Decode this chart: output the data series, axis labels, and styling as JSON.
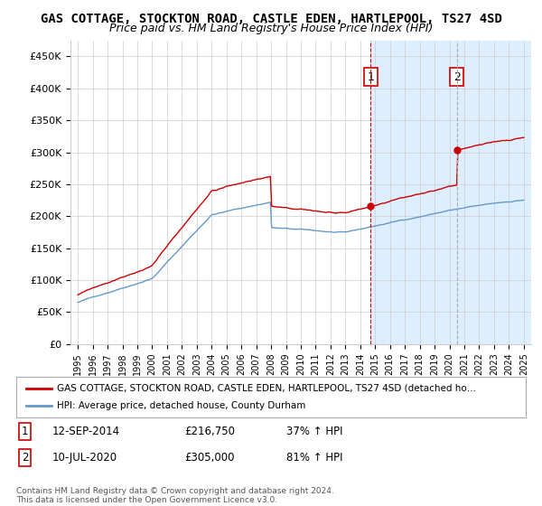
{
  "title": "GAS COTTAGE, STOCKTON ROAD, CASTLE EDEN, HARTLEPOOL, TS27 4SD",
  "subtitle": "Price paid vs. HM Land Registry's House Price Index (HPI)",
  "ylim": [
    0,
    475000
  ],
  "yticks": [
    0,
    50000,
    100000,
    150000,
    200000,
    250000,
    300000,
    350000,
    400000,
    450000
  ],
  "ytick_labels": [
    "£0",
    "£50K",
    "£100K",
    "£150K",
    "£200K",
    "£250K",
    "£300K",
    "£350K",
    "£400K",
    "£450K"
  ],
  "hpi_color": "#6699cc",
  "price_color": "#cc0000",
  "annotation1_date": "12-SEP-2014",
  "annotation1_price": "£216,750",
  "annotation1_pct": "37% ↑ HPI",
  "annotation1_year": 2014.7,
  "annotation1_value": 216750,
  "annotation2_date": "10-JUL-2020",
  "annotation2_price": "£305,000",
  "annotation2_pct": "81% ↑ HPI",
  "annotation2_year": 2020.5,
  "annotation2_value": 305000,
  "legend_label1": "GAS COTTAGE, STOCKTON ROAD, CASTLE EDEN, HARTLEPOOL, TS27 4SD (detached ho…",
  "legend_label2": "HPI: Average price, detached house, County Durham",
  "footer1": "Contains HM Land Registry data © Crown copyright and database right 2024.",
  "footer2": "This data is licensed under the Open Government Licence v3.0.",
  "background_color": "#ffffff",
  "plot_bg_color": "#ffffff",
  "shaded_region_color": "#ddeeff",
  "grid_color": "#cccccc"
}
